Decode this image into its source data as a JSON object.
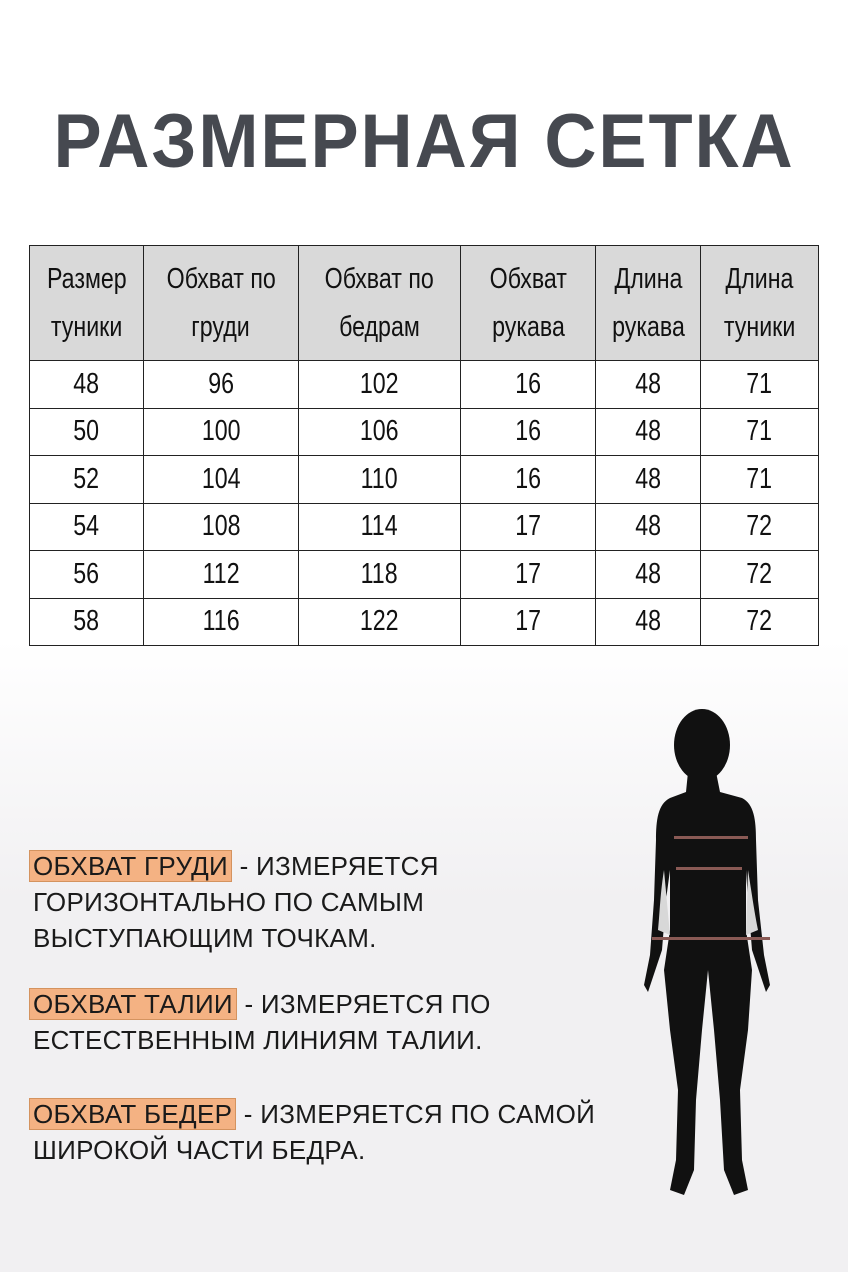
{
  "title": "РАЗМЕРНАЯ СЕТКА",
  "table": {
    "headers": [
      [
        "Размер",
        "туники"
      ],
      [
        "Обхват по",
        "груди"
      ],
      [
        "Обхват по",
        "бедрам"
      ],
      [
        "Обхват",
        "рукава"
      ],
      [
        "Длина",
        "рукава"
      ],
      [
        "Длина",
        "туники"
      ]
    ],
    "rows": [
      [
        "48",
        "96",
        "102",
        "16",
        "48",
        "71"
      ],
      [
        "50",
        "100",
        "106",
        "16",
        "48",
        "71"
      ],
      [
        "52",
        "104",
        "110",
        "16",
        "48",
        "71"
      ],
      [
        "54",
        "108",
        "114",
        "17",
        "48",
        "72"
      ],
      [
        "56",
        "112",
        "118",
        "17",
        "48",
        "72"
      ],
      [
        "58",
        "116",
        "122",
        "17",
        "48",
        "72"
      ]
    ]
  },
  "notes": [
    {
      "term": "ОБХВАТ ГРУДИ",
      "lines": [
        "- ИЗМЕРЯЕТСЯ",
        "ГОРИЗОНТАЛЬНО ПО САМЫМ",
        "ВЫСТУПАЮЩИМ ТОЧКАМ."
      ]
    },
    {
      "term": "ОБХВАТ ТАЛИИ",
      "lines": [
        "- ИЗМЕРЯЕТСЯ ПО",
        "ЕСТЕСТВЕННЫМ ЛИНИЯМ ТАЛИИ."
      ]
    },
    {
      "term": "ОБХВАТ БЕДЕР",
      "lines": [
        "- ИЗМЕРЯЕТСЯ ПО САМОЙ",
        "ШИРОКОЙ ЧАСТИ БЕДРА."
      ]
    }
  ],
  "colors": {
    "title": "#464950",
    "header_bg": "#d9d9d9",
    "highlight": "#f4b283",
    "measure_line": "#8a5a55"
  }
}
